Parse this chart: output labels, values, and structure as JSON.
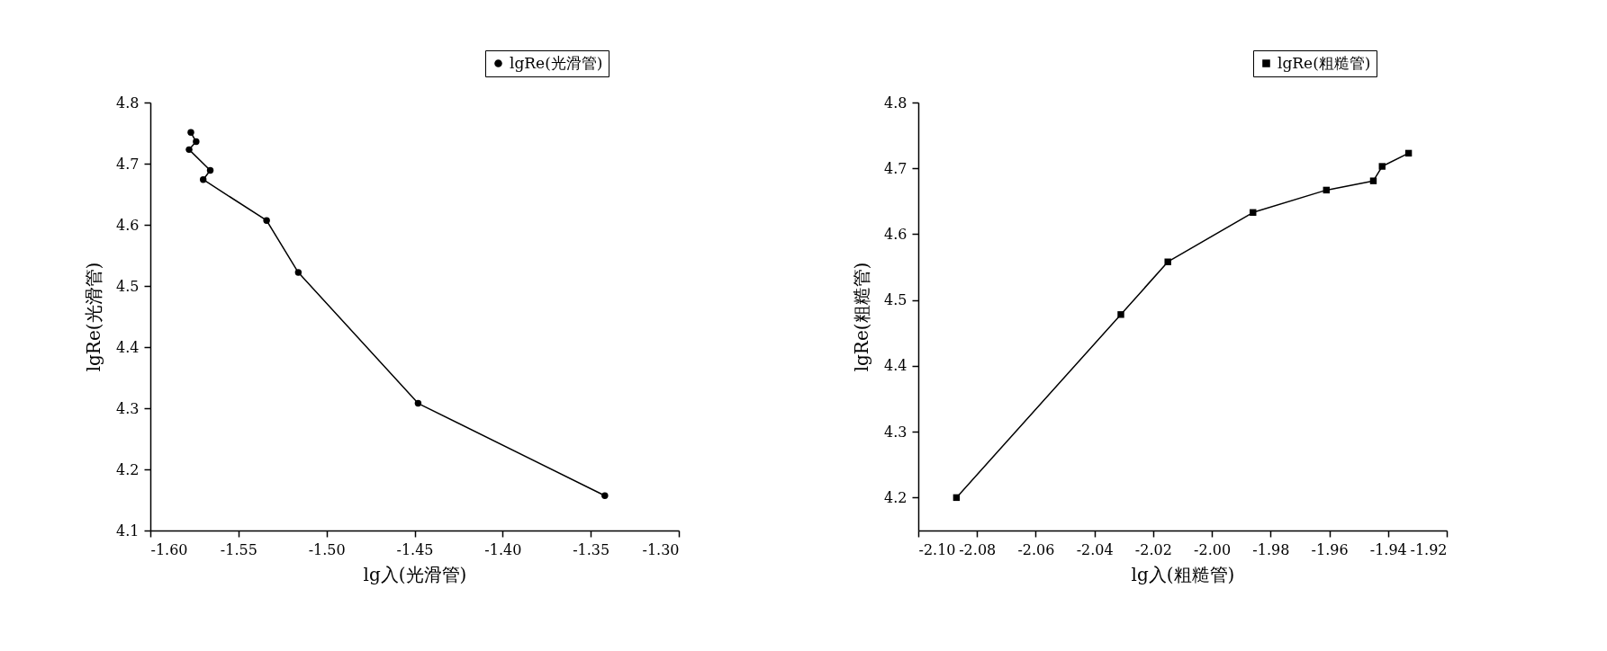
{
  "chart_data": [
    {
      "type": "line",
      "xlabel": "lg入(光滑管)",
      "ylabel": "lgRe(光滑管)",
      "xlim": [
        -1.6,
        -1.3
      ],
      "xticks": [
        {
          "value": -1.6,
          "label": "-1.60"
        },
        {
          "value": -1.55,
          "label": "-1.55"
        },
        {
          "value": -1.5,
          "label": "-1.50"
        },
        {
          "value": -1.45,
          "label": "-1.45"
        },
        {
          "value": -1.4,
          "label": "-1.40"
        },
        {
          "value": -1.35,
          "label": "-1.35"
        },
        {
          "value": -1.3,
          "label": "-1.30"
        }
      ],
      "ylim": [
        4.1,
        4.8
      ],
      "yticks": [
        4.1,
        4.2,
        4.3,
        4.4,
        4.5,
        4.6,
        4.7,
        4.8
      ],
      "grid": false,
      "legend": "top right",
      "marker": "circle",
      "line_style": "solid",
      "series": [
        {
          "name": "lgRe(光滑管)",
          "color": "#000000",
          "x": [
            -1.577,
            -1.574,
            -1.578,
            -1.566,
            -1.57,
            -1.534,
            -1.516,
            -1.448,
            -1.342
          ],
          "values": [
            4.751,
            4.736,
            4.723,
            4.689,
            4.674,
            4.607,
            4.522,
            4.308,
            4.157
          ]
        }
      ]
    },
    {
      "type": "line",
      "xlabel": "lg入(粗糙管)",
      "ylabel": "lgRe(粗糙管)",
      "xlim": [
        -2.1,
        -1.92
      ],
      "xticks": [
        {
          "value": -2.1,
          "label": "-2.10"
        },
        {
          "value": -2.08,
          "label": "-2.08"
        },
        {
          "value": -2.06,
          "label": "-2.06"
        },
        {
          "value": -2.04,
          "label": "-2.04"
        },
        {
          "value": -2.02,
          "label": "-2.02"
        },
        {
          "value": -2.0,
          "label": "-2.00"
        },
        {
          "value": -1.98,
          "label": "-1.98"
        },
        {
          "value": -1.96,
          "label": "-1.96"
        },
        {
          "value": -1.94,
          "label": "-1.94"
        },
        {
          "value": -1.92,
          "label": "-1.92"
        }
      ],
      "ylim": [
        4.15,
        4.8
      ],
      "yticks": [
        4.2,
        4.3,
        4.4,
        4.5,
        4.6,
        4.7,
        4.8
      ],
      "grid": false,
      "legend": "top right",
      "marker": "square",
      "line_style": "solid",
      "series": [
        {
          "name": "lgRe(粗糙管)",
          "color": "#000000",
          "x": [
            -2.087,
            -2.031,
            -2.015,
            -1.986,
            -1.961,
            -1.945,
            -1.942,
            -1.933
          ],
          "values": [
            4.2,
            4.478,
            4.558,
            4.633,
            4.667,
            4.681,
            4.703,
            4.723
          ]
        }
      ]
    }
  ]
}
